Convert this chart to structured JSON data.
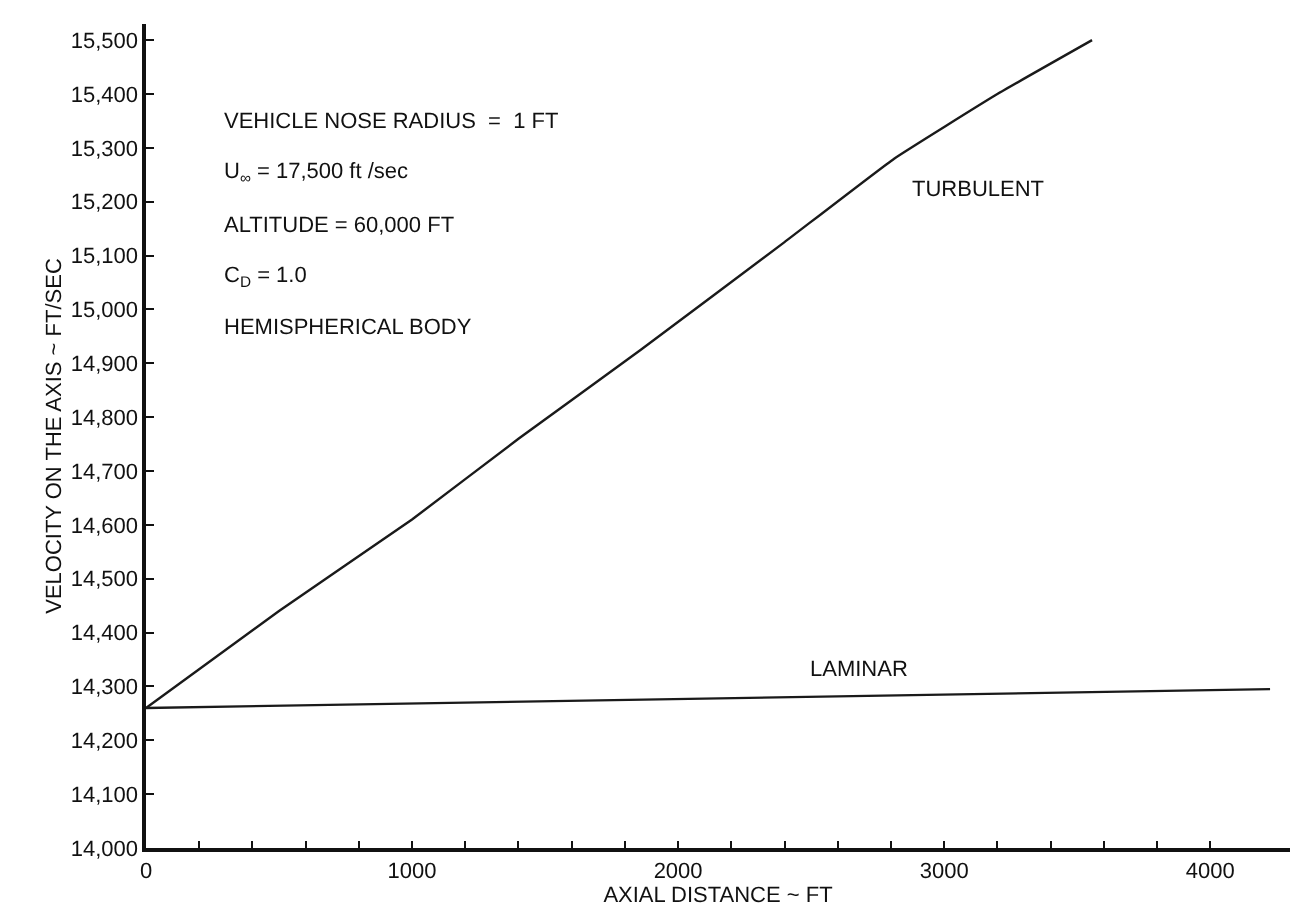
{
  "chart_data": {
    "type": "line",
    "xlabel": "AXIAL DISTANCE ~ FT",
    "ylabel": "VELOCITY ON THE AXIS ~ FT/SEC",
    "annotations": [
      "VEHICLE NOSE RADIUS  =  1 FT",
      "U$_{∞}$ = 17,500 ft /sec",
      "ALTITUDE = 60,000 FT",
      "C$_{D}$ = 1.0",
      "HEMISPHERICAL BODY"
    ],
    "series": [
      {
        "name": "TURBULENT",
        "color": "#1a1a1a",
        "x": [
          0,
          500,
          1000,
          1400,
          1860,
          2400,
          2812,
          3200,
          3556
        ],
        "values": [
          14260,
          14440,
          14610,
          14760,
          14925,
          15125,
          15280,
          15400,
          15500
        ]
      },
      {
        "name": "LAMINAR",
        "color": "#1a1a1a",
        "x": [
          0,
          4225
        ],
        "values": [
          14260,
          14295
        ]
      }
    ],
    "xlim": [
      0,
      4300
    ],
    "ylim": [
      14000,
      15530
    ],
    "xticks": [
      0,
      {
        "value": 200,
        "label": null
      },
      {
        "value": 400,
        "label": null
      },
      {
        "value": 600,
        "label": null
      },
      {
        "value": 800,
        "label": null
      },
      1000,
      {
        "value": 1200,
        "label": null
      },
      {
        "value": 1400,
        "label": null
      },
      {
        "value": 1600,
        "label": null
      },
      {
        "value": 1800,
        "label": null
      },
      2000,
      {
        "value": 2200,
        "label": null
      },
      {
        "value": 2400,
        "label": null
      },
      {
        "value": 2600,
        "label": null
      },
      {
        "value": 2800,
        "label": null
      },
      3000,
      {
        "value": 3200,
        "label": null
      },
      {
        "value": 3400,
        "label": null
      },
      {
        "value": 3600,
        "label": null
      },
      {
        "value": 3800,
        "label": null
      },
      4000
    ],
    "yticks": [
      {
        "value": 14000,
        "label": "14,000"
      },
      {
        "value": 14100,
        "label": "14,100"
      },
      {
        "value": 14200,
        "label": "14,200"
      },
      {
        "value": 14300,
        "label": "14,300"
      },
      {
        "value": 14400,
        "label": "14,400"
      },
      {
        "value": 14500,
        "label": "14,500"
      },
      {
        "value": 14600,
        "label": "14,600"
      },
      {
        "value": 14700,
        "label": "14,700"
      },
      {
        "value": 14800,
        "label": "14,800"
      },
      {
        "value": 14900,
        "label": "14,900"
      },
      {
        "value": 15000,
        "label": "15,000"
      },
      {
        "value": 15100,
        "label": "15,100"
      },
      {
        "value": 15200,
        "label": "15,200"
      },
      {
        "value": 15300,
        "label": "15,300"
      },
      {
        "value": 15400,
        "label": "15,400"
      },
      {
        "value": 15500,
        "label": "15,500"
      }
    ],
    "grid": false,
    "legend": false,
    "marker": "none",
    "line_style": "solid"
  }
}
